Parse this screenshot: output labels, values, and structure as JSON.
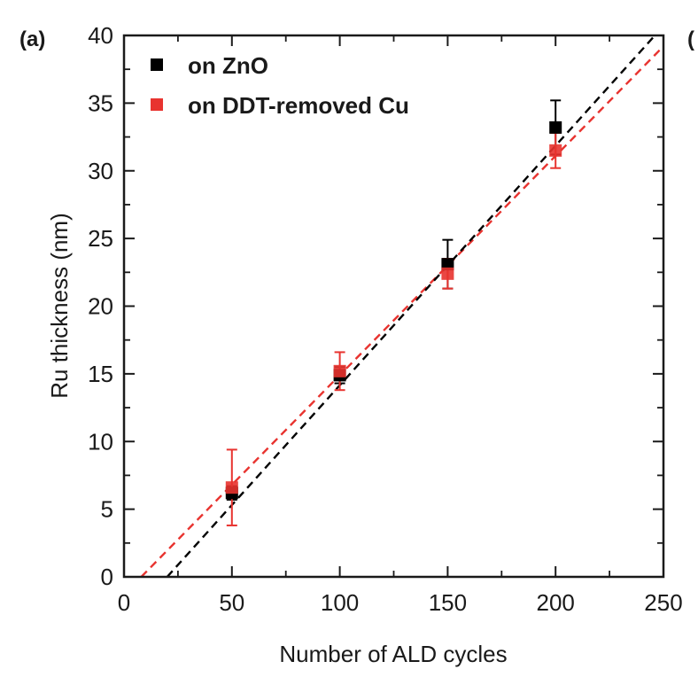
{
  "panel": {
    "label": "(a)",
    "next_panel_fragment": "("
  },
  "chart_data": {
    "type": "scatter",
    "xlabel": "Number of ALD cycles",
    "ylabel": "Ru thickness (nm)",
    "xlim": [
      0,
      250
    ],
    "ylim": [
      0,
      40
    ],
    "x_ticks": [
      0,
      50,
      100,
      150,
      200,
      250
    ],
    "y_ticks": [
      0,
      5,
      10,
      15,
      20,
      25,
      30,
      35,
      40
    ],
    "x_tick_labels": [
      "0",
      "50",
      "100",
      "150",
      "200",
      "250"
    ],
    "y_tick_labels": [
      "0",
      "5",
      "10",
      "15",
      "20",
      "25",
      "30",
      "35",
      "40"
    ],
    "grid": false,
    "legend_position": "top-left",
    "series": [
      {
        "name": "on ZnO",
        "color": "#000000",
        "marker": "square",
        "x": [
          50,
          100,
          150,
          200
        ],
        "y": [
          6.2,
          14.9,
          23.1,
          33.2
        ],
        "error": [
          0.5,
          0.6,
          1.8,
          2.0
        ],
        "fit": {
          "x": [
            20,
            250
          ],
          "y": [
            0,
            40.7
          ]
        }
      },
      {
        "name": "on DDT-removed Cu",
        "color": "#e8332f",
        "marker": "square",
        "x": [
          50,
          100,
          150,
          200
        ],
        "y": [
          6.6,
          15.2,
          22.4,
          31.5
        ],
        "error": [
          2.8,
          1.4,
          1.1,
          1.3
        ],
        "fit": {
          "x": [
            8,
            250
          ],
          "y": [
            0,
            39.2
          ]
        }
      }
    ]
  }
}
